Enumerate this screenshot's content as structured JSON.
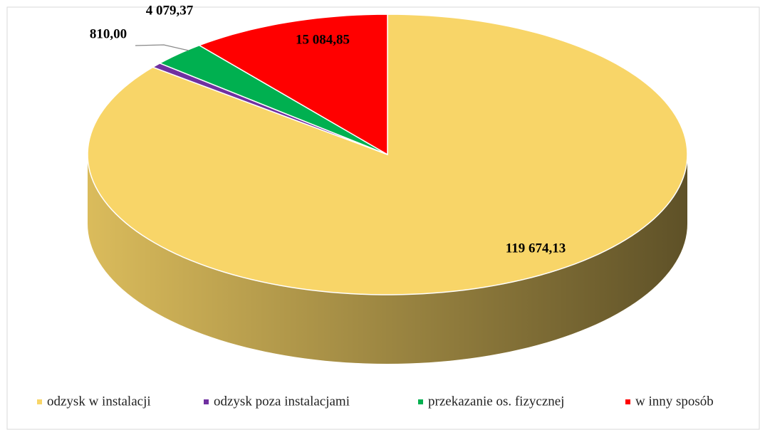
{
  "chart_data": {
    "type": "pie3d",
    "categories": [
      "odzysk w instalacji",
      "odzysk poza instalacjami",
      "przekazanie os. fizycznej",
      "w inny sposób"
    ],
    "values": [
      119674.13,
      810.0,
      4079.37,
      15084.85
    ],
    "value_labels": [
      "119 674,13",
      "810,00",
      "4 079,37",
      "15 084,85"
    ],
    "colors": [
      "#f8d568",
      "#7030a0",
      "#00b050",
      "#ff0000"
    ],
    "legend": "bottom"
  }
}
